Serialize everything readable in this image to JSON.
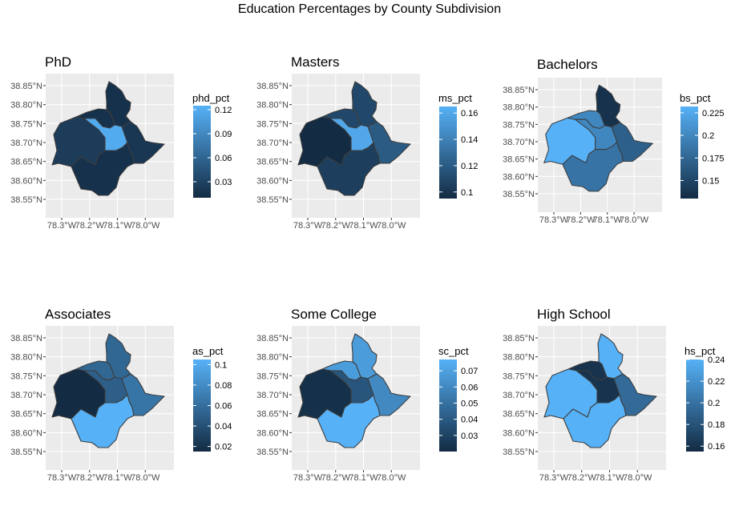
{
  "figure": {
    "title": "Education Percentages by County Subdivision"
  },
  "colors": {
    "panel_bg": "#ebebeb",
    "grid": "#ffffff",
    "region_border": "#3d3d3d",
    "gradient_low": "#132b43",
    "gradient_high": "#56b1f7"
  },
  "chart_data": [
    {
      "type": "choropleth",
      "title": "PhD",
      "legend_title": "phd_pct",
      "lat_ticks": [
        "38.55°N",
        "38.60°N",
        "38.65°N",
        "38.70°N",
        "38.75°N",
        "38.80°N",
        "38.85°N"
      ],
      "lon_ticks": [
        "78.3°W",
        "78.2°W",
        "78.1°W",
        "78.0°W"
      ],
      "legend_ticks": [
        0.03,
        0.06,
        0.09,
        0.12
      ],
      "legend_range": [
        0.01,
        0.125
      ],
      "regions": {
        "northeast": 0.015,
        "northwest": 0.015,
        "west": 0.025,
        "center": 0.12,
        "south": 0.015,
        "east": 0.02
      }
    },
    {
      "type": "choropleth",
      "title": "Masters",
      "legend_title": "ms_pct",
      "lat_ticks": [
        "38.55°N",
        "38.60°N",
        "38.65°N",
        "38.70°N",
        "38.75°N",
        "38.80°N",
        "38.85°N"
      ],
      "lon_ticks": [
        "78.3°W",
        "78.2°W",
        "78.1°W",
        "78.0°W"
      ],
      "legend_ticks": [
        0.1,
        0.12,
        0.14,
        0.16
      ],
      "legend_range": [
        0.095,
        0.165
      ],
      "regions": {
        "northeast": 0.11,
        "northwest": 0.11,
        "west": 0.095,
        "center": 0.16,
        "south": 0.105,
        "east": 0.12
      }
    },
    {
      "type": "choropleth",
      "title": "Bachelors",
      "legend_title": "bs_pct",
      "lat_ticks": [
        "38.55°N",
        "38.60°N",
        "38.65°N",
        "38.70°N",
        "38.75°N",
        "38.80°N",
        "38.85°N"
      ],
      "lon_ticks": [
        "78.3°W",
        "78.2°W",
        "78.1°W",
        "78.0°W"
      ],
      "legend_ticks": [
        0.15,
        0.175,
        0.2,
        0.225
      ],
      "legend_range": [
        0.13,
        0.232
      ],
      "regions": {
        "northeast": 0.135,
        "northwest": 0.2,
        "west": 0.232,
        "center": 0.2,
        "south": 0.185,
        "east": 0.17
      }
    },
    {
      "type": "choropleth",
      "title": "Associates",
      "legend_title": "as_pct",
      "lat_ticks": [
        "38.55°N",
        "38.60°N",
        "38.65°N",
        "38.70°N",
        "38.75°N",
        "38.80°N",
        "38.85°N"
      ],
      "lon_ticks": [
        "78.3°W",
        "78.2°W",
        "78.1°W",
        "78.0°W"
      ],
      "legend_ticks": [
        0.02,
        0.04,
        0.06,
        0.08,
        0.1
      ],
      "legend_range": [
        0.015,
        0.105
      ],
      "regions": {
        "northeast": 0.055,
        "northwest": 0.055,
        "west": 0.015,
        "center": 0.05,
        "south": 0.105,
        "east": 0.065
      }
    },
    {
      "type": "choropleth",
      "title": "Some College",
      "legend_title": "sc_pct",
      "lat_ticks": [
        "38.55°N",
        "38.60°N",
        "38.65°N",
        "38.70°N",
        "38.75°N",
        "38.80°N",
        "38.85°N"
      ],
      "lon_ticks": [
        "78.3°W",
        "78.2°W",
        "78.1°W",
        "78.0°W"
      ],
      "legend_ticks": [
        0.03,
        0.04,
        0.05,
        0.06,
        0.07
      ],
      "legend_range": [
        0.02,
        0.077
      ],
      "regions": {
        "northeast": 0.068,
        "northwest": 0.068,
        "west": 0.022,
        "center": 0.038,
        "south": 0.077,
        "east": 0.06
      }
    },
    {
      "type": "choropleth",
      "title": "High School",
      "legend_title": "hs_pct",
      "lat_ticks": [
        "38.55°N",
        "38.60°N",
        "38.65°N",
        "38.70°N",
        "38.75°N",
        "38.80°N",
        "38.85°N"
      ],
      "lon_ticks": [
        "78.3°W",
        "78.2°W",
        "78.1°W",
        "78.0°W"
      ],
      "legend_ticks": [
        0.16,
        0.18,
        0.2,
        0.22,
        0.24
      ],
      "legend_range": [
        0.155,
        0.24
      ],
      "regions": {
        "northeast": 0.24,
        "northwest": 0.16,
        "west": 0.24,
        "center": 0.16,
        "south": 0.24,
        "east": 0.195
      }
    }
  ]
}
